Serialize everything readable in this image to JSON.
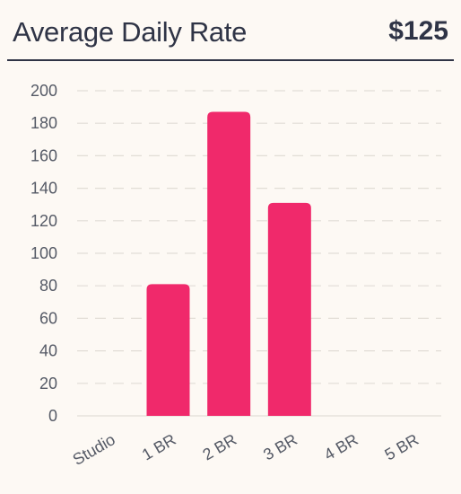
{
  "header": {
    "title": "Average Daily Rate",
    "value": "$125"
  },
  "colors": {
    "bar": "#f0296b",
    "grid": "#e2ddd6",
    "text": "#2f3446",
    "tick": "#555a66"
  },
  "chart_data": {
    "type": "bar",
    "categories": [
      "Studio",
      "1 BR",
      "2 BR",
      "3 BR",
      "4 BR",
      "5 BR"
    ],
    "values": [
      0,
      81,
      187,
      131,
      0,
      0
    ],
    "yticks": [
      0,
      20,
      40,
      60,
      80,
      100,
      120,
      140,
      160,
      180,
      200
    ],
    "ylim": [
      0,
      200
    ],
    "grid": true,
    "xlabel": "",
    "ylabel": ""
  }
}
